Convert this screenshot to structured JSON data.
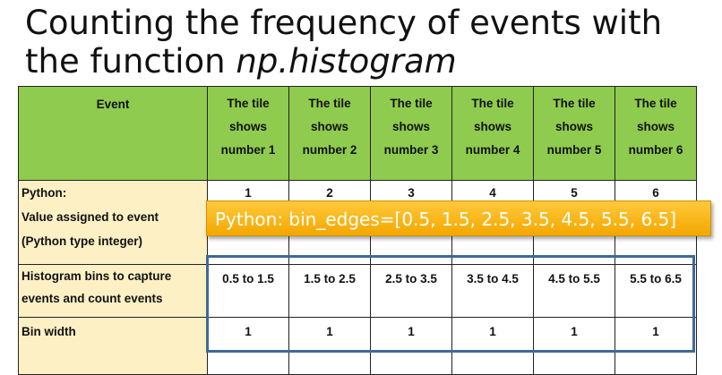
{
  "title": {
    "main": "Counting the frequency of events with the function ",
    "func": "np.histogram"
  },
  "table": {
    "header_event": "Event",
    "header_cells": [
      [
        "The tile",
        "shows",
        "number 1"
      ],
      [
        "The tile",
        "shows",
        "number 2"
      ],
      [
        "The tile",
        "shows",
        "number 3"
      ],
      [
        "The tile",
        "shows",
        "number 4"
      ],
      [
        "The tile",
        "shows",
        "number 5"
      ],
      [
        "The tile",
        "shows",
        "number 6"
      ]
    ],
    "rows": [
      {
        "label": [
          "Python:",
          "Value assigned to event",
          "(Python type integer)"
        ],
        "values": [
          "1",
          "2",
          "3",
          "4",
          "5",
          "6"
        ]
      },
      {
        "label": [
          "Histogram bins to capture",
          "events and count events"
        ],
        "values": [
          "0.5 to 1.5",
          "1.5 to 2.5",
          "2.5 to 3.5",
          "3.5 to 4.5",
          "4.5 to 5.5",
          "5.5 to 6.5"
        ]
      },
      {
        "label": [
          "Bin width"
        ],
        "values": [
          "1",
          "1",
          "1",
          "1",
          "1",
          "1"
        ]
      }
    ]
  },
  "callout": "Python: bin_edges=[0.5, 1.5, 2.5, 3.5, 4.5, 5.5, 6.5]",
  "colors": {
    "header_bg": "#8fcb4f",
    "label_bg": "#fdf0c5",
    "highlight_box": "#3d6a96",
    "callout_bg": "#f7b512"
  }
}
